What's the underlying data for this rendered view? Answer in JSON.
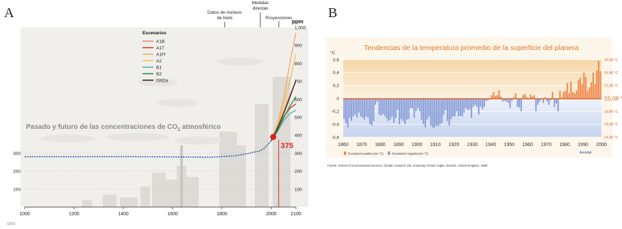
{
  "panels": {
    "a": "A",
    "b": "B"
  },
  "chart_data": [
    {
      "type": "line",
      "panel": "A",
      "title": "Pasado y futuro de las concentraciones de CO",
      "title_sub": "2",
      "title_tail": " atmosférico",
      "annotations": {
        "ice_core": [
          "Datos de núcleos",
          "de hielo"
        ],
        "direct": [
          "Medidas",
          "directas"
        ],
        "projections": "Proyecciones",
        "marker_value": "375"
      },
      "legend_title": "Escenarios",
      "legend_position": "top-center",
      "xlim": [
        1000,
        2100
      ],
      "ylim": [
        0,
        1000
      ],
      "x_ticks": [
        "1000",
        "1200",
        "1400",
        "1600",
        "1800",
        "2000",
        "2100"
      ],
      "y_ticks_left": [
        "100",
        "200",
        "300"
      ],
      "y_ticks_right": [
        "100",
        "200",
        "300",
        "400",
        "500",
        "600",
        "700",
        "800",
        "900",
        "1,000"
      ],
      "y_unit": "ppm",
      "logo": "GRID",
      "history": {
        "x": [
          1000,
          1100,
          1200,
          1300,
          1400,
          1500,
          1600,
          1700,
          1750,
          1800,
          1850,
          1900,
          1925,
          1950,
          1960,
          1970,
          1980,
          1990,
          2000,
          2005
        ],
        "y": [
          280,
          281,
          280,
          281,
          281,
          280,
          279,
          278,
          277,
          281,
          285,
          296,
          305,
          311,
          317,
          325,
          339,
          354,
          369,
          379
        ]
      },
      "marker": {
        "x": 2030,
        "y": 375
      },
      "series": [
        {
          "name": "A1B",
          "color": "#e08b6a",
          "x": [
            2000,
            2025,
            2050,
            2075,
            2100
          ],
          "y": [
            369,
            440,
            530,
            620,
            705
          ]
        },
        {
          "name": "A1T",
          "color": "#c03c2a",
          "x": [
            2000,
            2025,
            2050,
            2075,
            2100
          ],
          "y": [
            369,
            430,
            500,
            550,
            575
          ]
        },
        {
          "name": "A1FI",
          "color": "#f2a86a",
          "x": [
            2000,
            2025,
            2050,
            2075,
            2100
          ],
          "y": [
            369,
            460,
            600,
            800,
            970
          ]
        },
        {
          "name": "A2",
          "color": "#f0c44a",
          "x": [
            2000,
            2025,
            2050,
            2075,
            2100
          ],
          "y": [
            369,
            450,
            560,
            700,
            850
          ]
        },
        {
          "name": "B1",
          "color": "#55b8b0",
          "x": [
            2000,
            2025,
            2050,
            2075,
            2100
          ],
          "y": [
            369,
            420,
            480,
            520,
            540
          ]
        },
        {
          "name": "B2",
          "color": "#2f8c4a",
          "x": [
            2000,
            2025,
            2050,
            2075,
            2100
          ],
          "y": [
            369,
            425,
            495,
            560,
            615
          ]
        },
        {
          "name": "IS92a",
          "color": "#4a2a22",
          "x": [
            2000,
            2025,
            2050,
            2075,
            2100
          ],
          "y": [
            369,
            440,
            520,
            610,
            705
          ]
        }
      ]
    },
    {
      "type": "bar",
      "panel": "B",
      "title": "Tendencias de la temperatura promedio de la superficie del planera",
      "ylabel": "°C",
      "xlim": [
        1860,
        2000
      ],
      "ylim": [
        -0.6,
        0.6
      ],
      "x_ticks": [
        "1860",
        "1870",
        "1880",
        "1890",
        "1900",
        "1910",
        "1920",
        "1930",
        "1940",
        "1950",
        "1960",
        "1970",
        "1980",
        "1990",
        "2000"
      ],
      "y_ticks": [
        "0,6",
        "0,4",
        "0,2",
        "0",
        "-0,2",
        "-0,4",
        "-0,6"
      ],
      "right_ticks": [
        "15,68 °C",
        "15,48 °C",
        "15,28 °C",
        "15,08 °C",
        "14,88 °C",
        "14,68 °C",
        "14,48 °C"
      ],
      "baseline_label": "15,08 °C",
      "legend": [
        {
          "name": "Desviación positiva (en °C)",
          "color": "#f08a4a"
        },
        {
          "name": "Desviación negativa (en °C)",
          "color": "#8a9ed8"
        }
      ],
      "legend_position": "bottom-left",
      "source": "Fuente: School of environmental sciences, climatic research unit, university of East Anglia, Norwich, United Kingdom, 1999.",
      "credit": "Arendal",
      "colors": {
        "positive": "#f08a4a",
        "negative": "#8a9ed8",
        "title": "#e07a2a"
      },
      "years": [
        1860,
        1861,
        1862,
        1863,
        1864,
        1865,
        1866,
        1867,
        1868,
        1869,
        1870,
        1871,
        1872,
        1873,
        1874,
        1875,
        1876,
        1877,
        1878,
        1879,
        1880,
        1881,
        1882,
        1883,
        1884,
        1885,
        1886,
        1887,
        1888,
        1889,
        1890,
        1891,
        1892,
        1893,
        1894,
        1895,
        1896,
        1897,
        1898,
        1899,
        1900,
        1901,
        1902,
        1903,
        1904,
        1905,
        1906,
        1907,
        1908,
        1909,
        1910,
        1911,
        1912,
        1913,
        1914,
        1915,
        1916,
        1917,
        1918,
        1919,
        1920,
        1921,
        1922,
        1923,
        1924,
        1925,
        1926,
        1927,
        1928,
        1929,
        1930,
        1931,
        1932,
        1933,
        1934,
        1935,
        1936,
        1937,
        1938,
        1939,
        1940,
        1941,
        1942,
        1943,
        1944,
        1945,
        1946,
        1947,
        1948,
        1949,
        1950,
        1951,
        1952,
        1953,
        1954,
        1955,
        1956,
        1957,
        1958,
        1959,
        1960,
        1961,
        1962,
        1963,
        1964,
        1965,
        1966,
        1967,
        1968,
        1969,
        1970,
        1971,
        1972,
        1973,
        1974,
        1975,
        1976,
        1977,
        1978,
        1979,
        1980,
        1981,
        1982,
        1983,
        1984,
        1985,
        1986,
        1987,
        1988,
        1989,
        1990,
        1991,
        1992,
        1993,
        1994,
        1995,
        1996,
        1997,
        1998,
        1999
      ],
      "values": [
        -0.32,
        -0.38,
        -0.45,
        -0.3,
        -0.35,
        -0.28,
        -0.25,
        -0.3,
        -0.22,
        -0.28,
        -0.3,
        -0.33,
        -0.28,
        -0.3,
        -0.4,
        -0.42,
        -0.35,
        -0.1,
        -0.05,
        -0.25,
        -0.27,
        -0.24,
        -0.27,
        -0.31,
        -0.35,
        -0.33,
        -0.28,
        -0.38,
        -0.3,
        -0.18,
        -0.4,
        -0.32,
        -0.35,
        -0.4,
        -0.33,
        -0.32,
        -0.15,
        -0.15,
        -0.3,
        -0.2,
        -0.15,
        -0.2,
        -0.33,
        -0.4,
        -0.45,
        -0.33,
        -0.28,
        -0.42,
        -0.45,
        -0.45,
        -0.42,
        -0.43,
        -0.4,
        -0.38,
        -0.25,
        -0.18,
        -0.35,
        -0.42,
        -0.32,
        -0.28,
        -0.28,
        -0.2,
        -0.28,
        -0.27,
        -0.28,
        -0.22,
        -0.15,
        -0.18,
        -0.17,
        -0.3,
        -0.13,
        -0.1,
        -0.13,
        -0.25,
        -0.13,
        -0.17,
        -0.13,
        -0.04,
        -0.03,
        -0.02,
        0.05,
        0.1,
        0.04,
        0.05,
        0.13,
        0.03,
        -0.05,
        -0.04,
        -0.05,
        -0.07,
        -0.15,
        -0.04,
        0.02,
        0.08,
        -0.13,
        -0.14,
        -0.2,
        0.05,
        0.07,
        0.02,
        -0.02,
        0.06,
        0.03,
        0.05,
        -0.2,
        -0.1,
        -0.05,
        -0.02,
        -0.07,
        0.02,
        -0.05,
        -0.1,
        -0.03,
        0.1,
        -0.13,
        -0.08,
        -0.2,
        0.12,
        0.02,
        0.1,
        0.12,
        0.24,
        0.08,
        0.26,
        0.1,
        0.08,
        0.12,
        0.28,
        0.32,
        0.22,
        0.4,
        0.33,
        0.12,
        0.17,
        0.25,
        0.4,
        0.22,
        0.43,
        0.58,
        0.42
      ]
    }
  ]
}
